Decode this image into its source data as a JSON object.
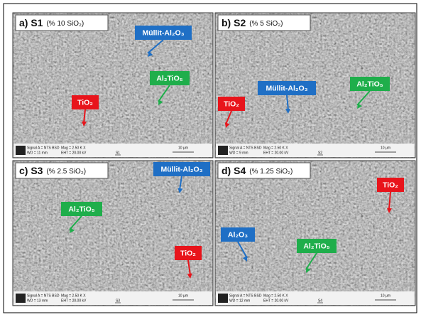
{
  "panels": [
    {
      "label": "a) S1",
      "composition": "(% 10 SiO₂)",
      "annotations": [
        {
          "text": "Müllit-Al₂O₃",
          "color": "#1f6fc5"
        },
        {
          "text": "Al₂TiO₅",
          "color": "#1fae4b"
        },
        {
          "text": "TiO₂",
          "color": "#e8141b"
        }
      ],
      "info": {
        "signal": "Signal A = NTS BSD",
        "mag": "Mag = 2.50 K X",
        "wd": "WD = 11 mm",
        "eht": "EHT = 20.00 kV",
        "sample": "S1",
        "scale": "10 µm"
      }
    },
    {
      "label": "b) S2",
      "composition": "(% 5 SiO₂)",
      "annotations": [
        {
          "text": "Müllit-Al₂O₃",
          "color": "#1f6fc5"
        },
        {
          "text": "Al₂TiO₅",
          "color": "#1fae4b"
        },
        {
          "text": "TiO₂",
          "color": "#e8141b"
        }
      ],
      "info": {
        "signal": "Signal A = NTS BSD",
        "mag": "Mag = 2.50 K X",
        "wd": "WD = 9 mm",
        "eht": "EHT = 20.00 kV",
        "sample": "S2",
        "scale": "10 µm"
      }
    },
    {
      "label": "c) S3",
      "composition": "(% 2.5 SiO₂)",
      "annotations": [
        {
          "text": "Müllit-Al₂O₃",
          "color": "#1f6fc5"
        },
        {
          "text": "Al₂TiO₅",
          "color": "#1fae4b"
        },
        {
          "text": "TiO₂",
          "color": "#e8141b"
        }
      ],
      "info": {
        "signal": "Signal A = NTS BSD",
        "mag": "Mag = 2.50 K X",
        "wd": "WD = 13 mm",
        "eht": "EHT = 20.00 kV",
        "sample": "S3",
        "scale": "10 µm"
      }
    },
    {
      "label": "d) S4",
      "composition": "(% 1.25 SiO₂)",
      "annotations": [
        {
          "text": "TiO₂",
          "color": "#e8141b"
        },
        {
          "text": "Al₂O₃",
          "color": "#1f6fc5"
        },
        {
          "text": "Al₂TiO₅",
          "color": "#1fae4b"
        }
      ],
      "info": {
        "signal": "Signal A = NTS BSD",
        "mag": "Mag = 2.50 K X",
        "wd": "WD = 12 mm",
        "eht": "EHT = 20.00 kV",
        "sample": "S4",
        "scale": "10 µm"
      }
    }
  ]
}
